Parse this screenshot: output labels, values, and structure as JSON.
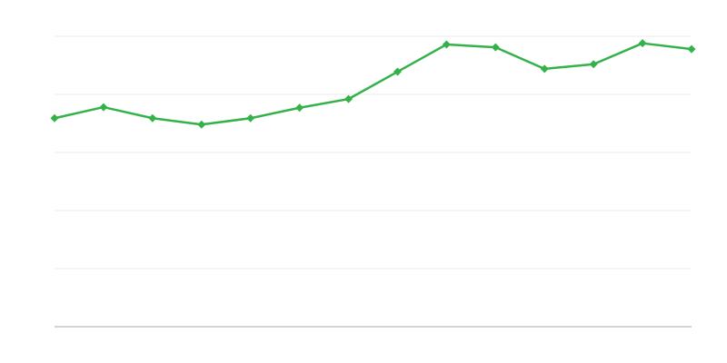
{
  "chart_data": {
    "type": "line",
    "title": "",
    "xlabel": "",
    "ylabel": "",
    "x": [
      1,
      2,
      3,
      4,
      5,
      6,
      7,
      8,
      9,
      10,
      11,
      12,
      13,
      14
    ],
    "series": [
      {
        "values": [
          3.59,
          3.78,
          3.59,
          3.48,
          3.59,
          3.77,
          3.92,
          4.39,
          4.86,
          4.81,
          4.44,
          4.52,
          4.88,
          4.78
        ],
        "color": "#34b24a",
        "marker": "diamond"
      }
    ],
    "ylim": [
      0,
      5
    ],
    "xlim": [
      1,
      14
    ],
    "grid": true,
    "gridlines": 5,
    "tick_labels_shown": false,
    "colors": {
      "grid": "#ebebeb",
      "axis": "#aaaaaa"
    }
  }
}
